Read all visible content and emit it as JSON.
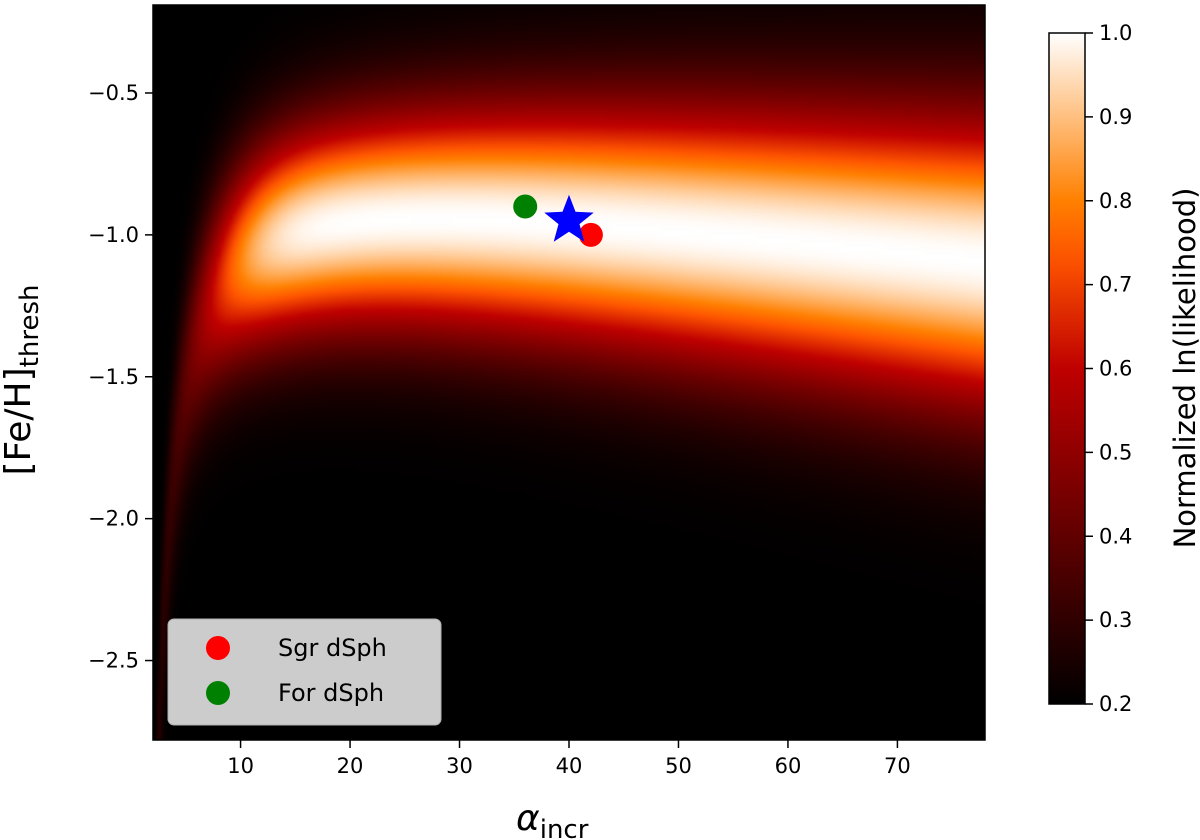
{
  "chart_data": {
    "type": "heatmap",
    "title": "",
    "xlabel": "α",
    "xlabel_sub": "incr",
    "ylabel": "[Fe/H]",
    "ylabel_sub": "thresh",
    "xlim": [
      2,
      78
    ],
    "ylim": [
      -2.78,
      -0.19
    ],
    "xticks": [
      10,
      20,
      30,
      40,
      50,
      60,
      70
    ],
    "xtick_labels": [
      "10",
      "20",
      "30",
      "40",
      "50",
      "60",
      "70"
    ],
    "yticks": [
      -0.5,
      -1.0,
      -1.5,
      -2.0,
      -2.5
    ],
    "ytick_labels": [
      "−0.5",
      "−1.0",
      "−1.5",
      "−2.0",
      "−2.5"
    ],
    "colormap": "gist_heat-like (black → red → orange → white)",
    "colorbar": {
      "label": "Normalized ln(likelihood)",
      "range": [
        0.2,
        1.0
      ],
      "ticks": [
        0.2,
        0.3,
        0.4,
        0.5,
        0.6,
        0.7,
        0.8,
        0.9,
        1.0
      ],
      "tick_labels": [
        "0.2",
        "0.3",
        "0.4",
        "0.5",
        "0.6",
        "0.7",
        "0.8",
        "0.9",
        "1.0"
      ]
    },
    "best_fit": {
      "x": 40,
      "y": -0.95,
      "marker": "star",
      "color": "#0000ff"
    },
    "points": [
      {
        "name": "Sgr dSph",
        "x": 42,
        "y": -1.0,
        "color": "#ff0000"
      },
      {
        "name": "For dSph",
        "x": 36,
        "y": -0.9,
        "color": "#008000"
      }
    ],
    "legend": {
      "position": "lower-left",
      "entries": [
        {
          "label": "Sgr dSph",
          "color": "#ff0000"
        },
        {
          "label": "For dSph",
          "color": "#008000"
        }
      ]
    },
    "grid": false
  }
}
